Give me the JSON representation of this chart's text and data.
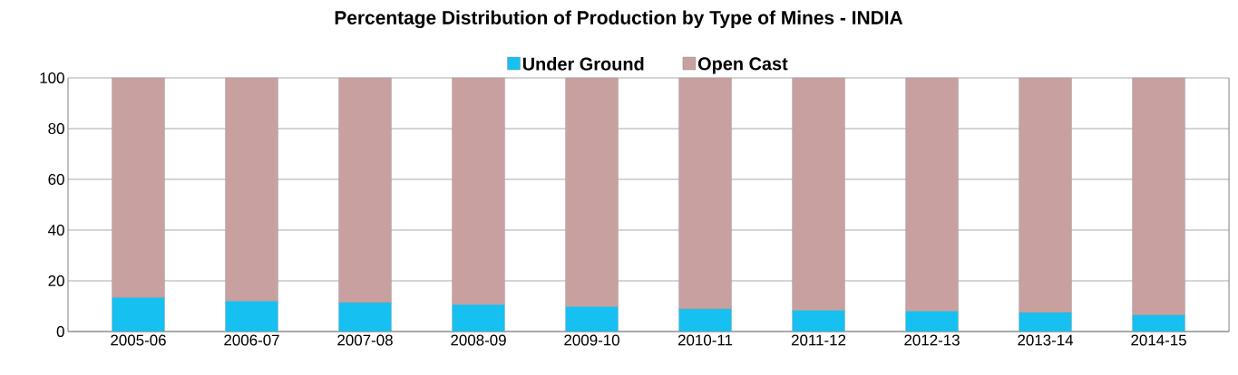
{
  "chart_data": {
    "type": "bar",
    "title": "Percentage Distribution of Production by Type of Mines - INDIA",
    "categories": [
      "2005-06",
      "2006-07",
      "2007-08",
      "2008-09",
      "2009-10",
      "2010-11",
      "2011-12",
      "2012-13",
      "2013-14",
      "2014-15"
    ],
    "stacked": true,
    "series": [
      {
        "name": "Under Ground",
        "color": "#16c0f0",
        "values": [
          13.4,
          12.0,
          11.4,
          10.6,
          9.8,
          8.9,
          8.3,
          8.0,
          7.5,
          6.5
        ]
      },
      {
        "name": "Open Cast",
        "color": "#c9a0a0",
        "values": [
          86.6,
          88.0,
          88.6,
          89.4,
          90.2,
          91.1,
          91.7,
          92.0,
          92.5,
          93.5
        ]
      }
    ],
    "ylim": [
      0,
      100
    ],
    "yticks": [
      0,
      20,
      40,
      60,
      80,
      100
    ],
    "grid": "y",
    "legend": "top"
  }
}
